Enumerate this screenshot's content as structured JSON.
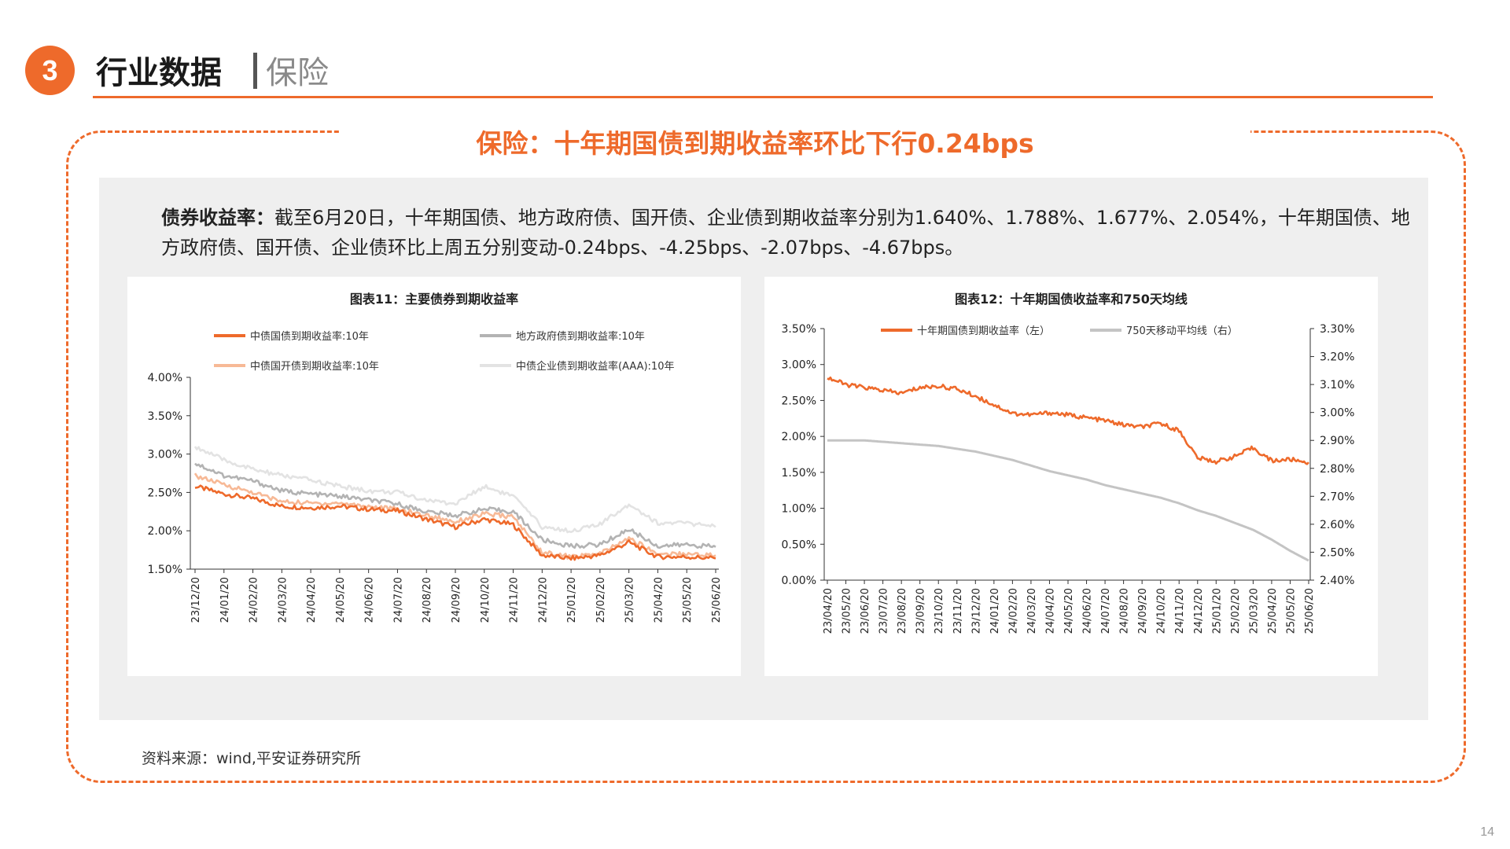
{
  "header": {
    "section_number": "3",
    "section_title": "行业数据",
    "section_subtitle": "保险"
  },
  "main_title": "保险：十年期国债到期收益率环比下行0.24bps",
  "description": {
    "label": "债券收益率：",
    "text": "截至6月20日，十年期国债、地方政府债、国开债、企业债到期收益率分别为1.640%、1.788%、1.677%、2.054%，十年期国债、地方政府债、国开债、企业债环比上周五分别变动-0.24bps、-4.25bps、-2.07bps、-4.67bps。"
  },
  "source": "资料来源：wind,平安证券研究所",
  "page_number": "14",
  "chart_data": [
    {
      "type": "line",
      "title": "图表11：主要债券到期收益率",
      "ylim": [
        1.5,
        4.0
      ],
      "yticks": [
        "4.00%",
        "3.50%",
        "3.00%",
        "2.50%",
        "2.00%",
        "1.50%"
      ],
      "categories": [
        "23/12/20",
        "24/01/20",
        "24/02/20",
        "24/03/20",
        "24/04/20",
        "24/05/20",
        "24/06/20",
        "24/07/20",
        "24/08/20",
        "24/09/20",
        "24/10/20",
        "24/11/20",
        "24/12/20",
        "25/01/20",
        "25/02/20",
        "25/03/20",
        "25/04/20",
        "25/05/20",
        "25/06/20"
      ],
      "series": [
        {
          "name": "中债国债到期收益率:10年",
          "color": "#ee6a2b",
          "values": [
            2.58,
            2.48,
            2.42,
            2.32,
            2.3,
            2.32,
            2.28,
            2.26,
            2.15,
            2.05,
            2.15,
            2.08,
            1.68,
            1.64,
            1.68,
            1.85,
            1.66,
            1.66,
            1.64
          ]
        },
        {
          "name": "地方政府债到期收益率:10年",
          "color": "#b3b3b3",
          "values": [
            2.88,
            2.72,
            2.65,
            2.52,
            2.48,
            2.45,
            2.4,
            2.35,
            2.25,
            2.2,
            2.28,
            2.25,
            1.88,
            1.8,
            1.82,
            2.02,
            1.8,
            1.82,
            1.79
          ]
        },
        {
          "name": "中债国开债到期收益率:10年",
          "color": "#f7b996",
          "values": [
            2.72,
            2.6,
            2.5,
            2.38,
            2.36,
            2.36,
            2.32,
            2.28,
            2.2,
            2.12,
            2.22,
            2.18,
            1.72,
            1.66,
            1.7,
            1.9,
            1.7,
            1.7,
            1.68
          ]
        },
        {
          "name": "中债企业债到期收益率(AAA):10年",
          "color": "#e3e3e3",
          "values": [
            3.1,
            2.92,
            2.8,
            2.72,
            2.66,
            2.58,
            2.52,
            2.5,
            2.4,
            2.35,
            2.58,
            2.45,
            2.05,
            2.0,
            2.08,
            2.35,
            2.1,
            2.1,
            2.05
          ]
        }
      ]
    },
    {
      "type": "line",
      "title": "图表12：十年期国债收益率和750天均线",
      "ylim_left": [
        0.0,
        3.5
      ],
      "ylim_right": [
        2.4,
        3.3
      ],
      "yticks_left": [
        "3.50%",
        "3.00%",
        "2.50%",
        "2.00%",
        "1.50%",
        "1.00%",
        "0.50%",
        "0.00%"
      ],
      "yticks_right": [
        "3.30%",
        "3.20%",
        "3.10%",
        "3.00%",
        "2.90%",
        "2.80%",
        "2.70%",
        "2.60%",
        "2.50%",
        "2.40%"
      ],
      "categories": [
        "23/04/20",
        "23/05/20",
        "23/06/20",
        "23/07/20",
        "23/08/20",
        "23/09/20",
        "23/10/20",
        "23/11/20",
        "23/12/20",
        "24/01/20",
        "24/02/20",
        "24/03/20",
        "24/04/20",
        "24/05/20",
        "24/06/20",
        "24/07/20",
        "24/08/20",
        "24/09/20",
        "24/10/20",
        "24/11/20",
        "24/12/20",
        "25/01/20",
        "25/02/20",
        "25/03/20",
        "25/04/20",
        "25/05/20",
        "25/06/20"
      ],
      "series": [
        {
          "name": "十年期国债到期收益率（左）",
          "color": "#ee6a2b",
          "axis": "left",
          "values": [
            2.82,
            2.72,
            2.68,
            2.64,
            2.6,
            2.68,
            2.7,
            2.66,
            2.56,
            2.44,
            2.32,
            2.3,
            2.33,
            2.3,
            2.26,
            2.22,
            2.16,
            2.13,
            2.18,
            2.08,
            1.7,
            1.65,
            1.72,
            1.84,
            1.66,
            1.68,
            1.64
          ]
        },
        {
          "name": "750天移动平均线（右）",
          "color": "#c4c4c4",
          "axis": "right",
          "values": [
            2.9,
            2.9,
            2.9,
            2.895,
            2.89,
            2.885,
            2.88,
            2.87,
            2.86,
            2.845,
            2.83,
            2.81,
            2.79,
            2.775,
            2.76,
            2.74,
            2.725,
            2.71,
            2.695,
            2.675,
            2.65,
            2.63,
            2.605,
            2.58,
            2.545,
            2.505,
            2.47
          ]
        }
      ]
    }
  ]
}
